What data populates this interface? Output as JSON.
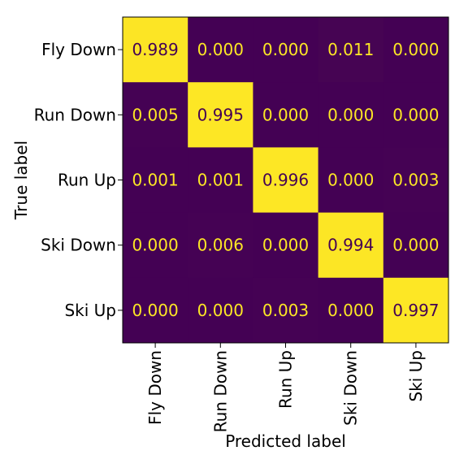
{
  "chart_data": {
    "type": "heatmap",
    "title": "",
    "xlabel": "Predicted label",
    "ylabel": "True label",
    "x_categories": [
      "Fly Down",
      "Run Down",
      "Run Up",
      "Ski Down",
      "Ski Up"
    ],
    "y_categories": [
      "Fly Down",
      "Run Down",
      "Run Up",
      "Ski Down",
      "Ski Up"
    ],
    "values": [
      [
        0.989,
        0.0,
        0.0,
        0.011,
        0.0
      ],
      [
        0.005,
        0.995,
        0.0,
        0.0,
        0.0
      ],
      [
        0.001,
        0.001,
        0.996,
        0.0,
        0.003
      ],
      [
        0.0,
        0.006,
        0.0,
        0.994,
        0.0
      ],
      [
        0.0,
        0.0,
        0.003,
        0.0,
        0.997
      ]
    ],
    "cell_labels": [
      [
        "0.989",
        "0.000",
        "0.000",
        "0.011",
        "0.000"
      ],
      [
        "0.005",
        "0.995",
        "0.000",
        "0.000",
        "0.000"
      ],
      [
        "0.001",
        "0.001",
        "0.996",
        "0.000",
        "0.003"
      ],
      [
        "0.000",
        "0.006",
        "0.000",
        "0.994",
        "0.000"
      ],
      [
        "0.000",
        "0.000",
        "0.003",
        "0.000",
        "0.997"
      ]
    ],
    "colormap": "viridis",
    "colors": {
      "low": "#440154",
      "high": "#fde725",
      "text_on_dark": "#fde725",
      "text_on_light": "#440154"
    }
  }
}
